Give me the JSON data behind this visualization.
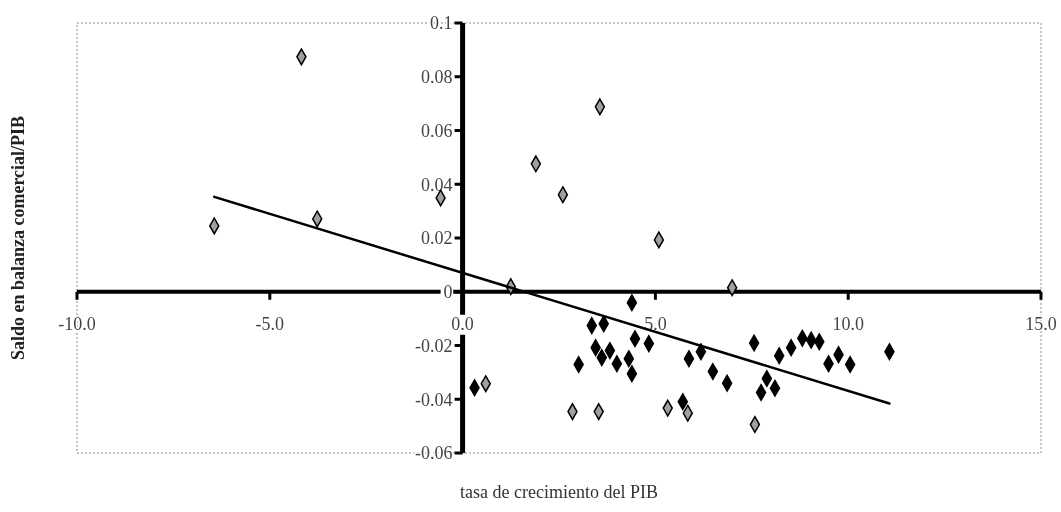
{
  "chart_data": {
    "type": "scatter",
    "xlabel": "tasa de crecimiento del PIB",
    "ylabel": "Saldo en balanza comercial/PIB",
    "xlim": [
      -10,
      15
    ],
    "ylim": [
      -0.06,
      0.1
    ],
    "xticks": [
      {
        "value": -10,
        "label": "-10.0"
      },
      {
        "value": -5,
        "label": "-5.0"
      },
      {
        "value": 0,
        "label": "0.0"
      },
      {
        "value": 5,
        "label": "5.0"
      },
      {
        "value": 10,
        "label": "10.0"
      },
      {
        "value": 15,
        "label": "15.0"
      }
    ],
    "yticks": [
      -0.06,
      -0.04,
      -0.02,
      0,
      0.02,
      0.04,
      0.06,
      0.08,
      0.1
    ],
    "grid": false,
    "marker": "diamond",
    "series": [
      {
        "color": "#a0a0a0",
        "x": [
          -6.44,
          -4.18,
          -3.77,
          -0.57,
          0.6,
          1.25,
          1.9,
          2.6,
          3.56,
          5.09,
          6.99,
          2.85,
          3.53,
          5.32,
          5.84,
          7.58
        ],
        "values": [
          0.0245,
          0.0874,
          0.0271,
          0.0349,
          -0.0342,
          0.0019,
          0.0476,
          0.0361,
          0.0688,
          0.0193,
          0.0015,
          -0.0446,
          -0.0446,
          -0.0433,
          -0.0452,
          -0.0494
        ]
      },
      {
        "color": "#000000",
        "x": [
          0.31,
          4.39,
          3.35,
          3.66,
          4.47,
          4.83,
          3.45,
          3.61,
          3.82,
          4.0,
          4.31,
          4.39,
          3.01,
          5.87,
          6.18,
          6.49,
          6.86,
          7.56,
          7.89,
          8.1,
          7.74,
          5.71,
          8.21,
          8.52,
          8.81,
          9.04,
          9.25,
          9.49,
          9.75,
          10.05,
          11.07
        ],
        "values": [
          -0.0357,
          -0.0041,
          -0.0126,
          -0.0119,
          -0.0175,
          -0.0193,
          -0.0208,
          -0.0245,
          -0.0219,
          -0.0268,
          -0.0249,
          -0.0305,
          -0.0271,
          -0.0249,
          -0.0223,
          -0.0297,
          -0.034,
          -0.0191,
          -0.0323,
          -0.0359,
          -0.0375,
          -0.0409,
          -0.0238,
          -0.0208,
          -0.0173,
          -0.018,
          -0.0186,
          -0.0268,
          -0.0234,
          -0.0271,
          -0.0223
        ]
      },
      {
        "type": "line",
        "color": "#000000",
        "marker": "none",
        "x": [
          -6.44,
          11.07
        ],
        "values": [
          0.0353,
          -0.0416
        ]
      }
    ]
  }
}
